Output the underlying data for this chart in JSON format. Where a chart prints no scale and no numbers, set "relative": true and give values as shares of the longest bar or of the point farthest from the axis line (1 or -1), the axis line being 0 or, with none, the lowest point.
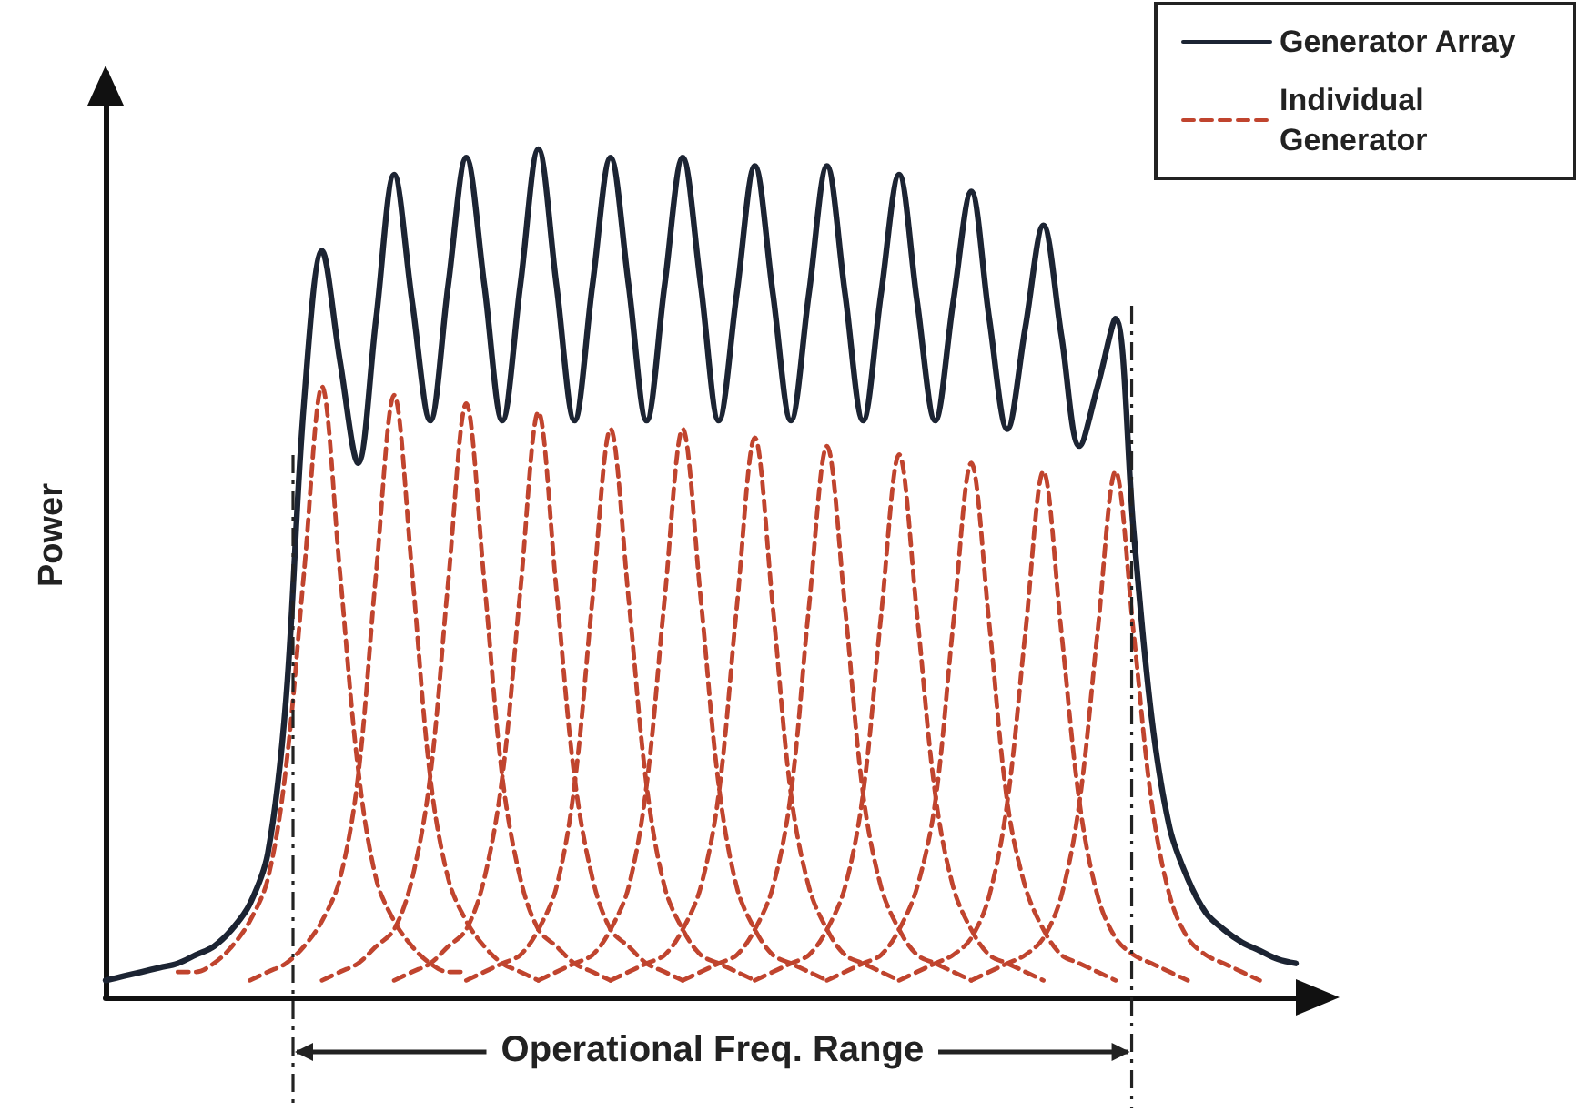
{
  "chart_data": {
    "type": "line",
    "relative": true,
    "ylabel": "Power",
    "legend": "top right",
    "grid": false,
    "marker": "none",
    "categories": [
      null,
      null,
      null,
      null,
      null,
      null,
      null,
      null,
      null,
      null,
      null,
      null,
      null,
      null,
      null,
      null,
      null,
      null,
      null,
      null,
      null,
      null,
      null,
      null,
      null,
      null,
      null,
      null,
      null,
      null,
      null,
      null,
      null,
      null,
      null,
      null,
      null,
      null,
      null,
      null,
      null,
      null,
      null,
      null,
      null,
      null,
      null,
      null,
      null,
      null,
      null,
      null,
      null,
      null,
      null,
      null,
      null,
      null,
      null,
      null,
      null,
      null,
      null,
      null,
      null,
      null,
      null
    ],
    "annotations": [
      "Operational Freq. Range"
    ],
    "series": [
      {
        "name": "Generator Array",
        "color": "#1c2433",
        "line_style": "solid",
        "values": [
          0.02,
          0.025,
          0.03,
          0.035,
          0.04,
          0.05,
          0.06,
          0.08,
          0.11,
          0.17,
          0.35,
          0.7,
          0.88,
          0.75,
          0.63,
          0.8,
          0.97,
          0.82,
          0.68,
          0.84,
          0.99,
          0.84,
          0.68,
          0.84,
          1.0,
          0.84,
          0.68,
          0.84,
          0.99,
          0.84,
          0.68,
          0.84,
          0.99,
          0.84,
          0.68,
          0.83,
          0.98,
          0.83,
          0.68,
          0.83,
          0.98,
          0.83,
          0.68,
          0.83,
          0.97,
          0.82,
          0.68,
          0.82,
          0.95,
          0.8,
          0.67,
          0.79,
          0.91,
          0.78,
          0.65,
          0.72,
          0.8,
          0.55,
          0.33,
          0.2,
          0.14,
          0.1,
          0.08,
          0.065,
          0.055,
          0.045,
          0.04
        ]
      },
      {
        "name": "Individual Generator",
        "color": "#c0442e",
        "line_style": "dashed",
        "values": [
          null,
          null,
          null,
          null,
          0.03,
          0.03,
          0.04,
          0.06,
          0.09,
          0.14,
          0.27,
          0.5,
          0.72,
          0.5,
          0.27,
          0.14,
          0.09,
          0.06,
          0.04,
          0.03,
          0.03,
          null,
          null,
          null,
          null,
          null,
          null,
          null,
          null,
          null,
          null,
          null,
          null,
          null,
          null,
          null,
          null,
          null,
          null,
          null,
          null,
          null,
          null,
          null,
          null,
          null,
          null,
          null,
          null,
          null,
          null,
          null,
          null,
          null,
          null,
          null,
          null,
          null,
          null,
          null,
          null,
          null,
          null,
          null,
          null,
          null,
          null
        ]
      },
      {
        "color": "#c0442e",
        "line_style": "dashed",
        "values": [
          null,
          null,
          null,
          null,
          null,
          null,
          null,
          null,
          0.02,
          0.03,
          0.04,
          0.06,
          0.09,
          0.14,
          0.26,
          0.5,
          0.71,
          0.5,
          0.26,
          0.14,
          0.09,
          0.06,
          0.04,
          0.03,
          0.02,
          null,
          null,
          null,
          null,
          null,
          null,
          null,
          null,
          null,
          null,
          null,
          null,
          null,
          null,
          null,
          null,
          null,
          null,
          null,
          null,
          null,
          null,
          null,
          null,
          null,
          null,
          null,
          null,
          null,
          null,
          null,
          null,
          null,
          null,
          null,
          null,
          null,
          null,
          null,
          null,
          null,
          null
        ]
      },
      {
        "color": "#c0442e",
        "line_style": "dashed",
        "values": [
          null,
          null,
          null,
          null,
          null,
          null,
          null,
          null,
          null,
          null,
          null,
          null,
          0.02,
          0.03,
          0.04,
          0.06,
          0.08,
          0.14,
          0.26,
          0.49,
          0.7,
          0.49,
          0.26,
          0.14,
          0.08,
          0.06,
          0.04,
          0.03,
          0.02,
          null,
          null,
          null,
          null,
          null,
          null,
          null,
          null,
          null,
          null,
          null,
          null,
          null,
          null,
          null,
          null,
          null,
          null,
          null,
          null,
          null,
          null,
          null,
          null,
          null,
          null,
          null,
          null,
          null,
          null,
          null,
          null,
          null,
          null,
          null,
          null,
          null,
          null
        ]
      },
      {
        "color": "#c0442e",
        "line_style": "dashed",
        "values": [
          null,
          null,
          null,
          null,
          null,
          null,
          null,
          null,
          null,
          null,
          null,
          null,
          null,
          null,
          null,
          null,
          0.02,
          0.03,
          0.04,
          0.06,
          0.08,
          0.14,
          0.26,
          0.48,
          0.69,
          0.48,
          0.26,
          0.14,
          0.08,
          0.06,
          0.04,
          0.03,
          0.02,
          null,
          null,
          null,
          null,
          null,
          null,
          null,
          null,
          null,
          null,
          null,
          null,
          null,
          null,
          null,
          null,
          null,
          null,
          null,
          null,
          null,
          null,
          null,
          null,
          null,
          null,
          null,
          null,
          null,
          null,
          null,
          null,
          null,
          null
        ]
      },
      {
        "color": "#c0442e",
        "line_style": "dashed",
        "values": [
          null,
          null,
          null,
          null,
          null,
          null,
          null,
          null,
          null,
          null,
          null,
          null,
          null,
          null,
          null,
          null,
          null,
          null,
          null,
          null,
          0.02,
          0.03,
          0.04,
          0.05,
          0.08,
          0.13,
          0.25,
          0.47,
          0.67,
          0.47,
          0.25,
          0.13,
          0.08,
          0.05,
          0.04,
          0.03,
          0.02,
          null,
          null,
          null,
          null,
          null,
          null,
          null,
          null,
          null,
          null,
          null,
          null,
          null,
          null,
          null,
          null,
          null,
          null,
          null,
          null,
          null,
          null,
          null,
          null,
          null,
          null,
          null,
          null,
          null,
          null
        ]
      },
      {
        "color": "#c0442e",
        "line_style": "dashed",
        "values": [
          null,
          null,
          null,
          null,
          null,
          null,
          null,
          null,
          null,
          null,
          null,
          null,
          null,
          null,
          null,
          null,
          null,
          null,
          null,
          null,
          null,
          null,
          null,
          null,
          0.02,
          0.03,
          0.04,
          0.05,
          0.08,
          0.13,
          0.25,
          0.47,
          0.67,
          0.47,
          0.25,
          0.13,
          0.08,
          0.05,
          0.04,
          0.03,
          0.02,
          null,
          null,
          null,
          null,
          null,
          null,
          null,
          null,
          null,
          null,
          null,
          null,
          null,
          null,
          null,
          null,
          null,
          null,
          null,
          null,
          null,
          null,
          null,
          null,
          null,
          null
        ]
      },
      {
        "color": "#c0442e",
        "line_style": "dashed",
        "values": [
          null,
          null,
          null,
          null,
          null,
          null,
          null,
          null,
          null,
          null,
          null,
          null,
          null,
          null,
          null,
          null,
          null,
          null,
          null,
          null,
          null,
          null,
          null,
          null,
          null,
          null,
          null,
          null,
          0.02,
          0.03,
          0.04,
          0.05,
          0.08,
          0.13,
          0.24,
          0.46,
          0.66,
          0.46,
          0.24,
          0.13,
          0.08,
          0.05,
          0.04,
          0.03,
          0.02,
          null,
          null,
          null,
          null,
          null,
          null,
          null,
          null,
          null,
          null,
          null,
          null,
          null,
          null,
          null,
          null,
          null,
          null,
          null,
          null,
          null,
          null
        ]
      },
      {
        "color": "#c0442e",
        "line_style": "dashed",
        "values": [
          null,
          null,
          null,
          null,
          null,
          null,
          null,
          null,
          null,
          null,
          null,
          null,
          null,
          null,
          null,
          null,
          null,
          null,
          null,
          null,
          null,
          null,
          null,
          null,
          null,
          null,
          null,
          null,
          null,
          null,
          null,
          null,
          0.02,
          0.03,
          0.04,
          0.05,
          0.08,
          0.13,
          0.24,
          0.46,
          0.65,
          0.46,
          0.24,
          0.13,
          0.08,
          0.05,
          0.04,
          0.03,
          0.02,
          null,
          null,
          null,
          null,
          null,
          null,
          null,
          null,
          null,
          null,
          null,
          null,
          null,
          null,
          null,
          null,
          null,
          null
        ]
      },
      {
        "color": "#c0442e",
        "line_style": "dashed",
        "values": [
          null,
          null,
          null,
          null,
          null,
          null,
          null,
          null,
          null,
          null,
          null,
          null,
          null,
          null,
          null,
          null,
          null,
          null,
          null,
          null,
          null,
          null,
          null,
          null,
          null,
          null,
          null,
          null,
          null,
          null,
          null,
          null,
          null,
          null,
          null,
          null,
          0.02,
          0.03,
          0.04,
          0.05,
          0.08,
          0.13,
          0.24,
          0.45,
          0.64,
          0.45,
          0.24,
          0.13,
          0.08,
          0.05,
          0.04,
          0.03,
          0.02,
          null,
          null,
          null,
          null,
          null,
          null,
          null,
          null,
          null,
          null,
          null,
          null,
          null,
          null
        ]
      },
      {
        "color": "#c0442e",
        "line_style": "dashed",
        "values": [
          null,
          null,
          null,
          null,
          null,
          null,
          null,
          null,
          null,
          null,
          null,
          null,
          null,
          null,
          null,
          null,
          null,
          null,
          null,
          null,
          null,
          null,
          null,
          null,
          null,
          null,
          null,
          null,
          null,
          null,
          null,
          null,
          null,
          null,
          null,
          null,
          null,
          null,
          null,
          null,
          0.02,
          0.03,
          0.04,
          0.05,
          0.08,
          0.13,
          0.23,
          0.44,
          0.63,
          0.44,
          0.23,
          0.13,
          0.08,
          0.05,
          0.04,
          0.03,
          0.02,
          null,
          null,
          null,
          null,
          null,
          null,
          null,
          null,
          null,
          null
        ]
      },
      {
        "color": "#c0442e",
        "line_style": "dashed",
        "values": [
          null,
          null,
          null,
          null,
          null,
          null,
          null,
          null,
          null,
          null,
          null,
          null,
          null,
          null,
          null,
          null,
          null,
          null,
          null,
          null,
          null,
          null,
          null,
          null,
          null,
          null,
          null,
          null,
          null,
          null,
          null,
          null,
          null,
          null,
          null,
          null,
          null,
          null,
          null,
          null,
          null,
          null,
          null,
          null,
          0.02,
          0.03,
          0.04,
          0.05,
          0.07,
          0.12,
          0.23,
          0.43,
          0.62,
          0.43,
          0.23,
          0.12,
          0.07,
          0.05,
          0.04,
          0.03,
          0.02,
          null,
          null,
          null,
          null,
          null,
          null
        ]
      },
      {
        "color": "#c0442e",
        "line_style": "dashed",
        "values": [
          null,
          null,
          null,
          null,
          null,
          null,
          null,
          null,
          null,
          null,
          null,
          null,
          null,
          null,
          null,
          null,
          null,
          null,
          null,
          null,
          null,
          null,
          null,
          null,
          null,
          null,
          null,
          null,
          null,
          null,
          null,
          null,
          null,
          null,
          null,
          null,
          null,
          null,
          null,
          null,
          null,
          null,
          null,
          null,
          null,
          null,
          null,
          null,
          0.02,
          0.03,
          0.04,
          0.05,
          0.07,
          0.12,
          0.23,
          0.43,
          0.62,
          0.43,
          0.23,
          0.12,
          0.07,
          0.05,
          0.04,
          0.03,
          0.02,
          null,
          null
        ]
      }
    ]
  }
}
